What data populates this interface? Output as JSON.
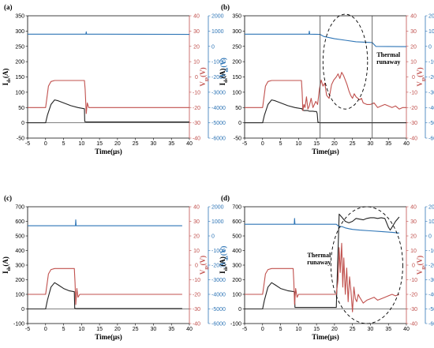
{
  "chart_data": [
    {
      "type": "line",
      "panel_label": "(a)",
      "xlabel": "Time(μs)",
      "ylabel_left": "I_ds(A)",
      "ylabel_mid": "V_gs(V)",
      "ylabel_right": "V_ds(V)",
      "xlim": [
        -5,
        40
      ],
      "xticks": [
        -5,
        0,
        5,
        10,
        15,
        20,
        25,
        30,
        35,
        40
      ],
      "ylim_left": [
        -50,
        350
      ],
      "yticks_left": [
        -50,
        0,
        50,
        100,
        150,
        200,
        250,
        300,
        350
      ],
      "ylim_mid": [
        -40,
        40
      ],
      "yticks_mid": [
        -40,
        -30,
        -20,
        -10,
        0,
        10,
        20,
        30,
        40
      ],
      "ylim_right": [
        -6000,
        2000
      ],
      "yticks_right": [
        -6000,
        -5000,
        -4000,
        -3000,
        -2000,
        -1000,
        0,
        1000,
        2000
      ],
      "colors": {
        "ids": "#222222",
        "vgs": "#c0504d",
        "vds": "#2e75b6"
      },
      "annotations": [],
      "series": [
        {
          "axis": "left",
          "color_key": "ids",
          "x": [
            -5,
            0,
            0.5,
            1.5,
            2.5,
            3.5,
            5,
            7,
            9,
            10.8,
            10.9,
            11.3,
            40
          ],
          "y": [
            0,
            0,
            25,
            60,
            75,
            72,
            65,
            56,
            50,
            46,
            4,
            3,
            3
          ]
        },
        {
          "axis": "mid",
          "color_key": "vgs",
          "x": [
            -5,
            0,
            0.3,
            0.8,
            1.5,
            2.5,
            10.8,
            11,
            11.3,
            11.6,
            12,
            40
          ],
          "y": [
            -20,
            -20,
            -15,
            -6,
            -3,
            -2.3,
            -2.3,
            -8,
            -24,
            -17,
            -20,
            -20
          ]
        },
        {
          "axis": "right",
          "color_key": "vds",
          "x": [
            -5,
            11.2,
            11.3,
            11.4,
            40
          ],
          "y": [
            800,
            800,
            950,
            800,
            780
          ]
        }
      ]
    },
    {
      "type": "line",
      "panel_label": "(b)",
      "xlabel": "Time(μs)",
      "ylabel_left": "I_ds(A)",
      "ylabel_mid": "V_gs(V)",
      "ylabel_right": "V_ds(V)",
      "xlim": [
        -5,
        40
      ],
      "xticks": [
        -5,
        0,
        5,
        10,
        15,
        20,
        25,
        30,
        35,
        40
      ],
      "ylim_left": [
        -50,
        350
      ],
      "yticks_left": [
        -50,
        0,
        50,
        100,
        150,
        200,
        250,
        300,
        350
      ],
      "ylim_mid": [
        -40,
        40
      ],
      "yticks_mid": [
        -40,
        -30,
        -20,
        -10,
        0,
        10,
        20,
        30,
        40
      ],
      "ylim_right": [
        -6000,
        2000
      ],
      "yticks_right": [
        -6000,
        -5000,
        -4000,
        -3000,
        -2000,
        -1000,
        0,
        1000,
        2000
      ],
      "colors": {
        "ids": "#222222",
        "vgs": "#c0504d",
        "vds": "#2e75b6"
      },
      "annotations": [
        {
          "text": "Thermal",
          "x": 35,
          "y_left": 216
        },
        {
          "text": "runaway",
          "x": 35,
          "y_left": 192
        }
      ],
      "markers": {
        "vlines": [
          16,
          30.5
        ],
        "ellipse": {
          "cx": 23,
          "cy_left": 200,
          "rx": 6.2,
          "ry_left": 155
        }
      },
      "series": [
        {
          "axis": "left",
          "color_key": "ids",
          "x": [
            -5,
            0,
            0.5,
            1.5,
            2.5,
            3.5,
            5,
            7,
            9,
            11,
            11.1,
            11.5,
            12,
            12.5,
            13,
            13.5,
            14,
            14.5,
            15,
            15.2,
            15.4,
            16,
            40
          ],
          "y": [
            0,
            0,
            25,
            60,
            75,
            72,
            65,
            56,
            50,
            46,
            42,
            40,
            40,
            40,
            38,
            38,
            38,
            37,
            37,
            30,
            2,
            0,
            0
          ]
        },
        {
          "axis": "mid",
          "color_key": "vgs",
          "x": [
            -5,
            0,
            0.3,
            0.8,
            1.5,
            2.5,
            10.8,
            11,
            11.2,
            11.5,
            11.8,
            12.2,
            12.6,
            13,
            13.5,
            14,
            14.4,
            14.8,
            15.3,
            15.8,
            16.3,
            16.8,
            17.3,
            17.8,
            18.5,
            19.2,
            19.8,
            20.5,
            21,
            21.5,
            22,
            22.5,
            23,
            23.5,
            24,
            24.5,
            25,
            25.5,
            26,
            27,
            27.5,
            28,
            29,
            30,
            31,
            32,
            33,
            34,
            35,
            36,
            37,
            38,
            39,
            40
          ],
          "y": [
            -20,
            -20,
            -15,
            -6,
            -3,
            -2.3,
            -2.3,
            -10,
            -22,
            -18,
            -20,
            -13,
            -21,
            -19,
            -14,
            -20,
            -18,
            -16,
            -18,
            -8,
            -2,
            -6,
            -4,
            -12,
            -14,
            -5,
            -2,
            0,
            2,
            -1,
            3,
            1,
            -2,
            -5,
            -9,
            -12,
            -14,
            -11,
            -13,
            -15,
            -14,
            -17,
            -18,
            -18,
            -17,
            -20,
            -19,
            -18,
            -19,
            -20,
            -19,
            -21,
            -20,
            -20
          ]
        },
        {
          "axis": "right",
          "color_key": "vds",
          "x": [
            -5,
            12.9,
            13,
            13.1,
            16,
            17,
            20,
            23,
            26,
            30.5,
            31.5,
            40
          ],
          "y": [
            800,
            800,
            1000,
            800,
            780,
            650,
            500,
            400,
            300,
            250,
            0,
            -20
          ]
        }
      ]
    },
    {
      "type": "line",
      "panel_label": "(c)",
      "xlabel": "Time(μs)",
      "ylabel_left": "I_ds(A)",
      "ylabel_mid": "V_gs(V)",
      "ylabel_right": "V_ds(V)",
      "xlim": [
        -5,
        40
      ],
      "xticks": [
        -5,
        0,
        5,
        10,
        15,
        20,
        25,
        30,
        35,
        40
      ],
      "ylim_left": [
        -100,
        700
      ],
      "yticks_left": [
        -100,
        0,
        100,
        200,
        300,
        400,
        500,
        600,
        700
      ],
      "ylim_mid": [
        -40,
        40
      ],
      "yticks_mid": [
        -40,
        -30,
        -20,
        -10,
        0,
        10,
        20,
        30,
        40
      ],
      "ylim_right": [
        -6000,
        2000
      ],
      "yticks_right": [
        -6000,
        -5000,
        -4000,
        -3000,
        -2000,
        -1000,
        0,
        1000,
        2000
      ],
      "colors": {
        "ids": "#222222",
        "vgs": "#c0504d",
        "vds": "#2e75b6"
      },
      "annotations": [],
      "series": [
        {
          "axis": "left",
          "color_key": "ids",
          "x": [
            -5,
            0,
            0.5,
            1.5,
            2.5,
            3.5,
            5,
            6.5,
            8,
            8.1,
            8.5,
            38
          ],
          "y": [
            0,
            0,
            60,
            150,
            180,
            165,
            140,
            125,
            118,
            5,
            2,
            2
          ]
        },
        {
          "axis": "mid",
          "color_key": "vgs",
          "x": [
            -5,
            0,
            0.3,
            0.8,
            1.5,
            2.5,
            8,
            8.2,
            8.4,
            8.7,
            9,
            9.5,
            38
          ],
          "y": [
            -20,
            -20,
            -15,
            -6,
            -3,
            -2.3,
            -2.3,
            -12,
            -27,
            -16,
            -22,
            -20,
            -20
          ]
        },
        {
          "axis": "right",
          "color_key": "vds",
          "x": [
            -5,
            8.3,
            8.4,
            8.5,
            38
          ],
          "y": [
            700,
            700,
            1100,
            700,
            700
          ]
        }
      ]
    },
    {
      "type": "line",
      "panel_label": "(d)",
      "xlabel": "Time(μs)",
      "ylabel_left": "I_ds(A)",
      "ylabel_mid": "V_gs(V)",
      "ylabel_right": "V_ds(V)",
      "xlim": [
        -5,
        40
      ],
      "xticks": [
        -5,
        0,
        5,
        10,
        15,
        20,
        25,
        30,
        35,
        40
      ],
      "ylim_left": [
        -100,
        700
      ],
      "yticks_left": [
        -100,
        0,
        100,
        200,
        300,
        400,
        500,
        600,
        700
      ],
      "ylim_mid": [
        -40,
        40
      ],
      "yticks_mid": [
        -40,
        -30,
        -20,
        -10,
        0,
        10,
        20,
        30,
        40
      ],
      "ylim_right": [
        -6000,
        2000
      ],
      "yticks_right": [
        -6000,
        -5000,
        -4000,
        -3000,
        -2000,
        -1000,
        0,
        1000,
        2000
      ],
      "colors": {
        "ids": "#222222",
        "vgs": "#c0504d",
        "vds": "#2e75b6"
      },
      "annotations": [
        {
          "text": "Thermal",
          "x": 15.7,
          "y_left": 355
        },
        {
          "text": "runaway",
          "x": 15.7,
          "y_left": 305
        }
      ],
      "markers": {
        "vlines": [],
        "ellipse": {
          "cx": 29,
          "cy_left": 300,
          "rx": 10,
          "ry_left": 400
        }
      },
      "series": [
        {
          "axis": "left",
          "color_key": "ids",
          "x": [
            -5,
            0,
            0.5,
            1.5,
            2.5,
            3.5,
            5,
            7,
            8.9,
            9,
            9.5,
            20.5,
            21,
            21.3,
            22,
            23,
            24,
            25,
            26,
            27,
            28,
            29,
            30,
            31,
            32,
            33,
            34,
            35,
            35.5,
            36,
            37,
            38
          ],
          "y": [
            0,
            0,
            60,
            150,
            180,
            165,
            140,
            125,
            118,
            10,
            10,
            10,
            400,
            650,
            630,
            600,
            590,
            600,
            620,
            615,
            610,
            620,
            625,
            625,
            620,
            625,
            620,
            560,
            540,
            560,
            600,
            630
          ]
        },
        {
          "axis": "mid",
          "color_key": "vgs",
          "x": [
            -5,
            0,
            0.3,
            0.8,
            1.5,
            2.5,
            8.5,
            8.7,
            8.9,
            9.2,
            9.6,
            10,
            20.5,
            21,
            21.3,
            21.6,
            22,
            22.3,
            22.6,
            23,
            23.4,
            23.8,
            24.2,
            24.6,
            25,
            25.4,
            25.8,
            26.2,
            26.6,
            27,
            27.5,
            28,
            29,
            30,
            31,
            32,
            33,
            34,
            35,
            36,
            37,
            38
          ],
          "y": [
            -20,
            -20,
            -15,
            -6,
            -3,
            -2.3,
            -2.3,
            -12,
            -27,
            -16,
            -22,
            -20,
            -20,
            -10,
            12,
            -5,
            15,
            -15,
            5,
            -20,
            -2,
            -25,
            -8,
            -18,
            -32,
            -15,
            -23,
            -25,
            -20,
            -22,
            -24,
            -26,
            -24,
            -23,
            -22,
            -24,
            -23,
            -22,
            -21,
            -20,
            -21,
            -20
          ]
        },
        {
          "axis": "right",
          "color_key": "vds",
          "x": [
            -5,
            8.8,
            8.9,
            9.0,
            20.5,
            21,
            21.5,
            22,
            23,
            24,
            25,
            27,
            30,
            33,
            36,
            38
          ],
          "y": [
            800,
            800,
            1200,
            800,
            800,
            700,
            600,
            650,
            550,
            500,
            450,
            400,
            350,
            300,
            250,
            200
          ]
        }
      ]
    }
  ]
}
